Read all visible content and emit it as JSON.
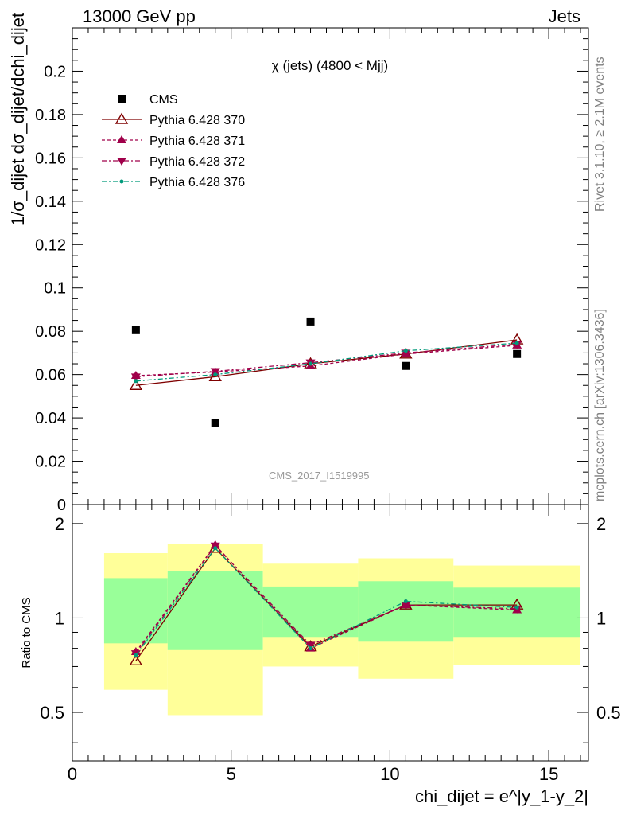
{
  "header": {
    "left": "13000 GeV pp",
    "right": "Jets"
  },
  "side_labels": {
    "rivet": "Rivet 3.1.10, ≥ 2.1M events",
    "mcplots": "mcplots.cern.ch [arXiv:1306.3436]"
  },
  "watermark": "CMS_2017_I1519995",
  "chart_data": [
    {
      "type": "scatter",
      "title": "χ (jets) (4800 < Mjj)",
      "ylabel": "1/σ_dijet dσ_dijet/dchi_dijet",
      "xlabel": "chi_dijet = e^|y_1-y_2|",
      "xlim": [
        0,
        16.25
      ],
      "ylim": [
        0,
        0.22
      ],
      "x_ticks": [
        "0",
        "5",
        "10",
        "15"
      ],
      "y_ticks": [
        "0",
        "0.02",
        "0.04",
        "0.06",
        "0.08",
        "0.1",
        "0.12",
        "0.14",
        "0.16",
        "0.18",
        "0.2"
      ],
      "legend_position": "top-left",
      "series": [
        {
          "name": "CMS",
          "color": "#000000",
          "marker": "square",
          "line": "none",
          "x": [
            2,
            4.5,
            7.5,
            10.5,
            14
          ],
          "y": [
            0.0805,
            0.0375,
            0.0845,
            0.064,
            0.0695
          ]
        },
        {
          "name": "Pythia 6.428 370",
          "color": "#7f0000",
          "marker": "triangle-up-open",
          "line": "solid",
          "x": [
            2,
            4.5,
            7.5,
            10.5,
            14
          ],
          "y": [
            0.055,
            0.059,
            0.065,
            0.0695,
            0.076
          ]
        },
        {
          "name": "Pythia 6.428 371",
          "color": "#a0004a",
          "marker": "triangle-up",
          "line": "dashed",
          "x": [
            2,
            4.5,
            7.5,
            10.5,
            14
          ],
          "y": [
            0.0595,
            0.0612,
            0.064,
            0.0695,
            0.0735
          ]
        },
        {
          "name": "Pythia 6.428 372",
          "color": "#a0004a",
          "marker": "triangle-down",
          "line": "dashdot",
          "x": [
            2,
            4.5,
            7.5,
            10.5,
            14
          ],
          "y": [
            0.059,
            0.0615,
            0.0655,
            0.07,
            0.074
          ]
        },
        {
          "name": "Pythia 6.428 376",
          "color": "#009a7a",
          "marker": "dot",
          "line": "dashdot",
          "x": [
            2,
            4.5,
            7.5,
            10.5,
            14
          ],
          "y": [
            0.057,
            0.06,
            0.065,
            0.071,
            0.0745
          ]
        }
      ]
    },
    {
      "type": "line",
      "ylabel": "Ratio to CMS",
      "xlim": [
        0,
        16.25
      ],
      "ylim": [
        0.35,
        2.3
      ],
      "y_ticks": [
        "0.5",
        "1",
        "2"
      ],
      "x_ticks": [
        "0",
        "5",
        "10",
        "15"
      ],
      "bands": [
        {
          "x0": 1,
          "x1": 3,
          "yellow": [
            0.59,
            1.61
          ],
          "green": [
            0.83,
            1.34
          ]
        },
        {
          "x0": 3,
          "x1": 6,
          "yellow": [
            0.49,
            1.72
          ],
          "green": [
            0.79,
            1.41
          ]
        },
        {
          "x0": 6,
          "x1": 9,
          "yellow": [
            0.7,
            1.49
          ],
          "green": [
            0.87,
            1.26
          ]
        },
        {
          "x0": 9,
          "x1": 12,
          "yellow": [
            0.64,
            1.55
          ],
          "green": [
            0.84,
            1.31
          ]
        },
        {
          "x0": 12,
          "x1": 16,
          "yellow": [
            0.71,
            1.47
          ],
          "green": [
            0.87,
            1.25
          ]
        }
      ],
      "band_colors": {
        "yellow": "#ffff99",
        "green": "#99ff99"
      },
      "reference_line": 1,
      "series": [
        {
          "name": "Pythia 6.428 370",
          "color": "#7f0000",
          "marker": "triangle-up-open",
          "line": "solid",
          "x": [
            2,
            4.5,
            7.5,
            10.5,
            14
          ],
          "y": [
            0.73,
            1.67,
            0.81,
            1.1,
            1.1
          ]
        },
        {
          "name": "Pythia 6.428 371",
          "color": "#a0004a",
          "marker": "triangle-up",
          "line": "dashed",
          "x": [
            2,
            4.5,
            7.5,
            10.5,
            14
          ],
          "y": [
            0.78,
            1.71,
            0.8,
            1.1,
            1.06
          ]
        },
        {
          "name": "Pythia 6.428 372",
          "color": "#a0004a",
          "marker": "triangle-down",
          "line": "dashdot",
          "x": [
            2,
            4.5,
            7.5,
            10.5,
            14
          ],
          "y": [
            0.77,
            1.7,
            0.82,
            1.1,
            1.07
          ]
        },
        {
          "name": "Pythia 6.428 376",
          "color": "#009a7a",
          "marker": "dot",
          "line": "dashdot",
          "x": [
            2,
            4.5,
            7.5,
            10.5,
            14
          ],
          "y": [
            0.76,
            1.67,
            0.8,
            1.13,
            1.08
          ]
        }
      ]
    }
  ]
}
